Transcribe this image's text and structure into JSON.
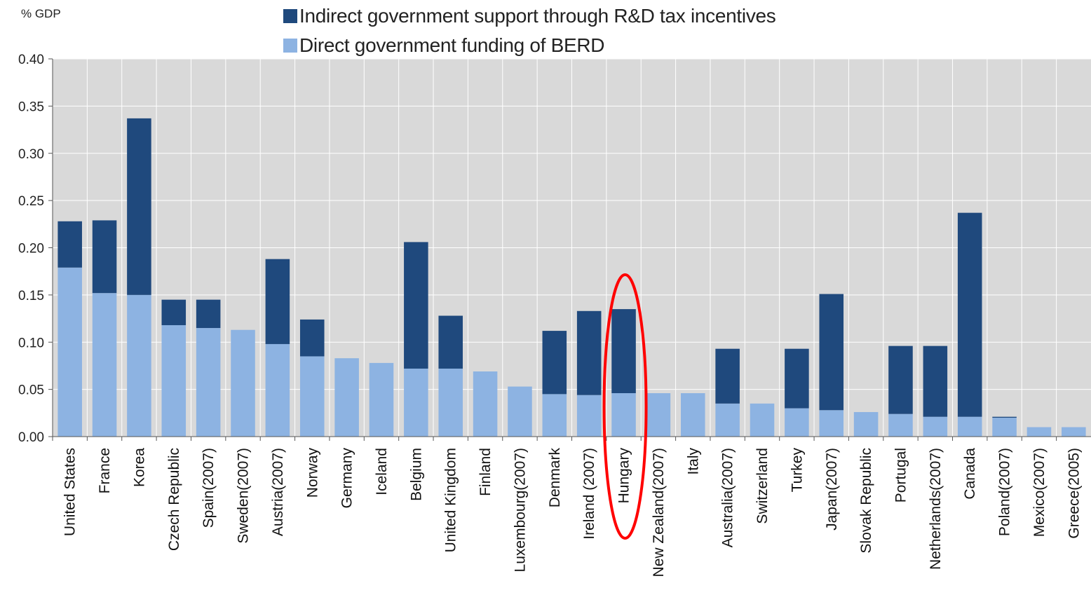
{
  "chart_data": {
    "type": "bar",
    "stacked": true,
    "unit_label": "% GDP",
    "categories": [
      "United States",
      "France",
      "Korea",
      "Czech Republic",
      "Spain(2007)",
      "Sweden(2007)",
      "Austria(2007)",
      "Norway",
      "Germany",
      "Iceland",
      "Belgium",
      "United Kingdom",
      "Finland",
      "Luxembourg(2007)",
      "Denmark",
      "Ireland (2007)",
      "Hungary",
      "New Zealand(2007)",
      "Italy",
      "Australia(2007)",
      "Switzerland",
      "Turkey",
      "Japan(2007)",
      "Slovak Republic",
      "Portugal",
      "Netherlands(2007)",
      "Canada",
      "Poland(2007)",
      "Mexico(2007)",
      "Greece(2005)"
    ],
    "series": [
      {
        "name": "Direct government funding of BERD",
        "color": "#8db3e2",
        "values": [
          0.179,
          0.152,
          0.15,
          0.118,
          0.115,
          0.113,
          0.098,
          0.085,
          0.083,
          0.078,
          0.072,
          0.072,
          0.069,
          0.053,
          0.045,
          0.044,
          0.046,
          0.046,
          0.046,
          0.035,
          0.035,
          0.03,
          0.028,
          0.026,
          0.024,
          0.021,
          0.021,
          0.02,
          0.01,
          0.01
        ]
      },
      {
        "name": "Indirect government support through R&D tax incentives",
        "color": "#1f497d",
        "values": [
          0.049,
          0.077,
          0.187,
          0.027,
          0.03,
          0.0,
          0.09,
          0.039,
          0.0,
          0.0,
          0.134,
          0.056,
          0.0,
          0.0,
          0.067,
          0.089,
          0.089,
          0.0,
          0.0,
          0.058,
          0.0,
          0.063,
          0.123,
          0.0,
          0.072,
          0.075,
          0.216,
          0.001,
          0.0,
          0.0
        ]
      }
    ],
    "legend_order": [
      1,
      0
    ],
    "ylim": [
      0,
      0.4
    ],
    "yticks": [
      "0.00",
      "0.05",
      "0.10",
      "0.15",
      "0.20",
      "0.25",
      "0.30",
      "0.35",
      "0.40"
    ],
    "grid": true,
    "legend_position": "top",
    "highlight": {
      "category": "Hungary",
      "shape": "ellipse",
      "color": "#ff0000"
    },
    "colors": {
      "plot_background": "#d9d9d9",
      "gridline": "#ffffff"
    }
  }
}
